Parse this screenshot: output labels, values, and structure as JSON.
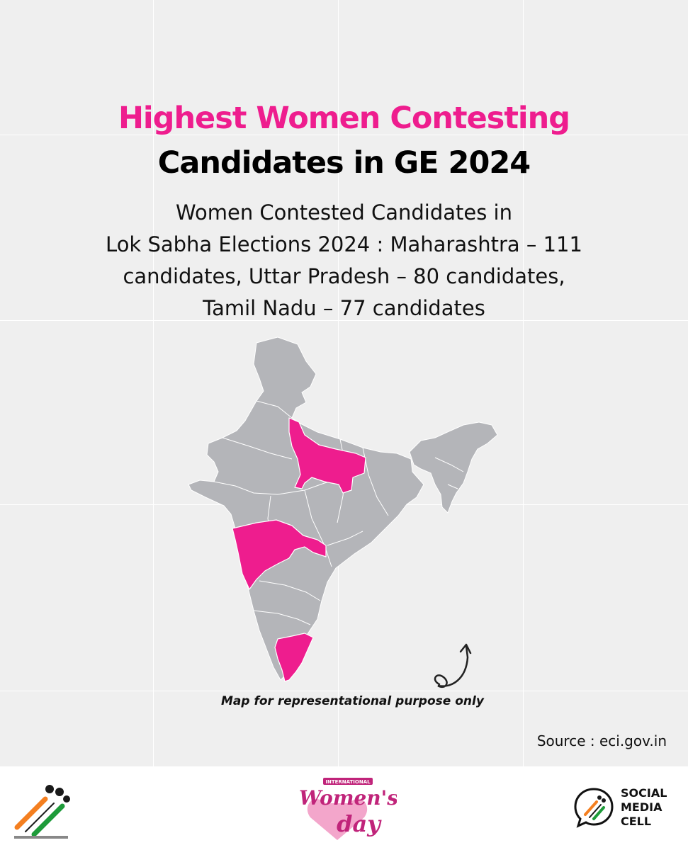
{
  "title": {
    "line1": "Highest Women Contesting",
    "line2": "Candidates in GE 2024"
  },
  "subtitle": {
    "intro_line1": "Women Contested Candidates in",
    "intro_line2": "Lok Sabha Elections 2024 : ",
    "stats_part1": "Maharashtra – 111",
    "stats_part2": "candidates, Uttar Pradesh – 80 candidates,",
    "stats_part3": "Tamil Nadu – 77 candidates"
  },
  "map": {
    "highlighted_states": [
      "Maharashtra",
      "Uttar Pradesh",
      "Tamil Nadu"
    ],
    "highlight_color": "#ee1d8e",
    "base_color": "#b4b5b9",
    "disclaimer": "Map for representational purpose only"
  },
  "source": {
    "label": "Source :",
    "value": "eci.gov.in"
  },
  "footer": {
    "smc_line1": "SOCIAL",
    "smc_line2": "MEDIA",
    "smc_line3": "CELL",
    "womens_day_banner": "INTERNATIONAL",
    "womens_day_main": "Women's",
    "womens_day_sub": "day"
  },
  "colors": {
    "accent": "#ee1d8e",
    "background": "#efefef",
    "text": "#111111"
  }
}
